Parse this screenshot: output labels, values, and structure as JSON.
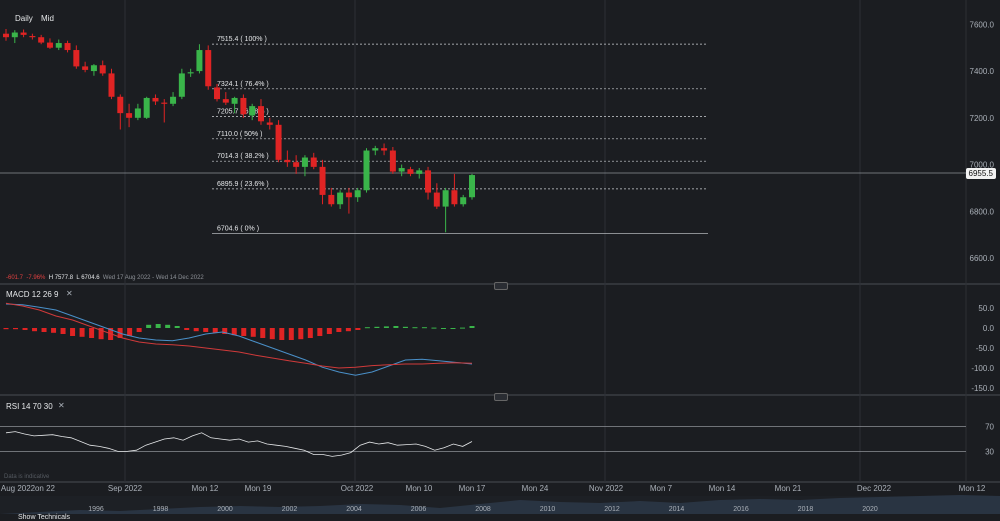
{
  "toolbar": {
    "daily_label": "Daily",
    "mid_label": "Mid"
  },
  "price_axis": {
    "ticks": [
      "7600.0",
      "7400.0",
      "7200.0",
      "7000.0",
      "6800.0",
      "6600.0"
    ],
    "last_price": "6955.5"
  },
  "fib_levels": [
    {
      "price": 7515.4,
      "label": "7515.4 ( 100% )"
    },
    {
      "price": 7324.1,
      "label": "7324.1 ( 76.4% )"
    },
    {
      "price": 7205.7,
      "label": "7205.7 ( 61.8% )"
    },
    {
      "price": 7110.0,
      "label": "7110.0 ( 50% )"
    },
    {
      "price": 7014.3,
      "label": "7014.3 ( 38.2% )"
    },
    {
      "price": 6895.9,
      "label": "6895.9 ( 23.6% )"
    },
    {
      "price": 6704.6,
      "label": "6704.6 ( 0% )"
    }
  ],
  "stats": {
    "change": "-601.7",
    "change_pct": "-7.96%",
    "high": "H 7577.8",
    "low": "L 6704.6",
    "range": "Wed 17 Aug 2022 - Wed 14 Dec 2022"
  },
  "macd": {
    "title": "MACD  12  26  9",
    "ticks": [
      "50.0",
      "0.0",
      "-50.0",
      "-100.0",
      "-150.0"
    ]
  },
  "rsi": {
    "title": "RSI  14  70  30",
    "ticks": [
      "70",
      "30"
    ]
  },
  "watermark": "Data is indicative",
  "date_axis": [
    "Aug 2022",
    "on 22",
    "Sep 2022",
    "Mon 12",
    "Mon 19",
    "Oct 2022",
    "Mon 10",
    "Mon 17",
    "Mon 24",
    "Nov 2022",
    "Mon 7",
    "Mon 14",
    "Mon 21",
    "Dec 2022",
    "Mon 12"
  ],
  "navigator_years": [
    "1996",
    "1998",
    "2000",
    "2002",
    "2004",
    "2006",
    "2008",
    "2010",
    "2012",
    "2014",
    "2016",
    "2018",
    "2020"
  ],
  "footer_label": "Show Technicals",
  "colors": {
    "up": "#3ab54a",
    "down": "#e02424",
    "background": "#1b1d21",
    "macd_line": "#4a90c9",
    "signal_line": "#d03a3a"
  },
  "chart_data": {
    "type": "candlestick",
    "y_range": [
      6540,
      7670
    ],
    "candles": [
      {
        "o": 7560,
        "h": 7580,
        "l": 7530,
        "c": 7545
      },
      {
        "o": 7545,
        "h": 7575,
        "l": 7520,
        "c": 7565
      },
      {
        "o": 7565,
        "h": 7578,
        "l": 7545,
        "c": 7555
      },
      {
        "o": 7550,
        "h": 7560,
        "l": 7535,
        "c": 7545
      },
      {
        "o": 7545,
        "h": 7555,
        "l": 7515,
        "c": 7522
      },
      {
        "o": 7522,
        "h": 7540,
        "l": 7495,
        "c": 7500
      },
      {
        "o": 7500,
        "h": 7535,
        "l": 7490,
        "c": 7520
      },
      {
        "o": 7520,
        "h": 7530,
        "l": 7480,
        "c": 7490
      },
      {
        "o": 7490,
        "h": 7510,
        "l": 7410,
        "c": 7420
      },
      {
        "o": 7420,
        "h": 7440,
        "l": 7395,
        "c": 7405
      },
      {
        "o": 7400,
        "h": 7430,
        "l": 7380,
        "c": 7425
      },
      {
        "o": 7425,
        "h": 7445,
        "l": 7380,
        "c": 7390
      },
      {
        "o": 7390,
        "h": 7410,
        "l": 7280,
        "c": 7290
      },
      {
        "o": 7290,
        "h": 7300,
        "l": 7150,
        "c": 7220
      },
      {
        "o": 7220,
        "h": 7260,
        "l": 7160,
        "c": 7200
      },
      {
        "o": 7200,
        "h": 7260,
        "l": 7190,
        "c": 7240
      },
      {
        "o": 7200,
        "h": 7290,
        "l": 7195,
        "c": 7285
      },
      {
        "o": 7285,
        "h": 7300,
        "l": 7255,
        "c": 7270
      },
      {
        "o": 7265,
        "h": 7280,
        "l": 7180,
        "c": 7260
      },
      {
        "o": 7260,
        "h": 7310,
        "l": 7250,
        "c": 7290
      },
      {
        "o": 7290,
        "h": 7410,
        "l": 7280,
        "c": 7390
      },
      {
        "o": 7390,
        "h": 7410,
        "l": 7375,
        "c": 7395
      },
      {
        "o": 7400,
        "h": 7515,
        "l": 7390,
        "c": 7490
      },
      {
        "o": 7490,
        "h": 7510,
        "l": 7320,
        "c": 7335
      },
      {
        "o": 7330,
        "h": 7345,
        "l": 7270,
        "c": 7280
      },
      {
        "o": 7280,
        "h": 7310,
        "l": 7255,
        "c": 7265
      },
      {
        "o": 7260,
        "h": 7290,
        "l": 7220,
        "c": 7285
      },
      {
        "o": 7285,
        "h": 7300,
        "l": 7200,
        "c": 7215
      },
      {
        "o": 7210,
        "h": 7260,
        "l": 7190,
        "c": 7250
      },
      {
        "o": 7250,
        "h": 7280,
        "l": 7170,
        "c": 7185
      },
      {
        "o": 7180,
        "h": 7200,
        "l": 7150,
        "c": 7170
      },
      {
        "o": 7170,
        "h": 7190,
        "l": 7010,
        "c": 7020
      },
      {
        "o": 7020,
        "h": 7060,
        "l": 6990,
        "c": 7010
      },
      {
        "o": 7010,
        "h": 7040,
        "l": 6960,
        "c": 6990
      },
      {
        "o": 6990,
        "h": 7040,
        "l": 6950,
        "c": 7030
      },
      {
        "o": 7030,
        "h": 7050,
        "l": 6980,
        "c": 6990
      },
      {
        "o": 6990,
        "h": 7020,
        "l": 6830,
        "c": 6870
      },
      {
        "o": 6870,
        "h": 6900,
        "l": 6820,
        "c": 6830
      },
      {
        "o": 6830,
        "h": 6890,
        "l": 6810,
        "c": 6880
      },
      {
        "o": 6880,
        "h": 6900,
        "l": 6790,
        "c": 6860
      },
      {
        "o": 6860,
        "h": 6900,
        "l": 6840,
        "c": 6890
      },
      {
        "o": 6890,
        "h": 7070,
        "l": 6880,
        "c": 7060
      },
      {
        "o": 7060,
        "h": 7080,
        "l": 7040,
        "c": 7070
      },
      {
        "o": 7070,
        "h": 7090,
        "l": 7040,
        "c": 7060
      },
      {
        "o": 7060,
        "h": 7075,
        "l": 6960,
        "c": 6970
      },
      {
        "o": 6970,
        "h": 7000,
        "l": 6950,
        "c": 6985
      },
      {
        "o": 6980,
        "h": 6990,
        "l": 6950,
        "c": 6960
      },
      {
        "o": 6960,
        "h": 6985,
        "l": 6940,
        "c": 6975
      },
      {
        "o": 6975,
        "h": 6990,
        "l": 6850,
        "c": 6880
      },
      {
        "o": 6880,
        "h": 6920,
        "l": 6810,
        "c": 6820
      },
      {
        "o": 6820,
        "h": 6900,
        "l": 6710,
        "c": 6890
      },
      {
        "o": 6890,
        "h": 6960,
        "l": 6820,
        "c": 6830
      },
      {
        "o": 6830,
        "h": 6870,
        "l": 6820,
        "c": 6860
      },
      {
        "o": 6860,
        "h": 6960,
        "l": 6850,
        "c": 6955
      }
    ],
    "macd_range": [
      -160,
      80
    ],
    "macd_line": [
      60,
      58,
      52,
      45,
      30,
      15,
      0,
      -15,
      -25,
      -30,
      -32,
      -25,
      -15,
      -10,
      -20,
      -35,
      -50,
      -65,
      -80,
      -98,
      -110,
      -118,
      -110,
      -95,
      -80,
      -78,
      -82,
      -86,
      -90
    ],
    "signal_line": [
      62,
      55,
      45,
      30,
      20,
      5,
      -10,
      -25,
      -35,
      -40,
      -42,
      -45,
      -50,
      -55,
      -60,
      -68,
      -75,
      -82,
      -88,
      -95,
      -100,
      -98,
      -94,
      -92,
      -90,
      -90,
      -88,
      -87,
      -88
    ],
    "histogram": [
      -3,
      -3,
      -5,
      -8,
      -10,
      -12,
      -15,
      -20,
      -22,
      -25,
      -28,
      -30,
      -25,
      -20,
      -10,
      8,
      10,
      8,
      5,
      -5,
      -8,
      -10,
      -12,
      -15,
      -18,
      -20,
      -22,
      -25,
      -28,
      -30,
      -30,
      -28,
      -25,
      -20,
      -15,
      -10,
      -8,
      -5,
      2,
      3,
      4,
      5,
      3,
      2,
      2,
      1,
      0,
      0,
      1,
      5
    ],
    "rsi_range": [
      0,
      100
    ],
    "rsi": [
      60,
      62,
      58,
      55,
      56,
      57,
      54,
      52,
      46,
      40,
      38,
      35,
      30,
      30,
      32,
      40,
      45,
      50,
      52,
      48,
      55,
      60,
      52,
      50,
      48,
      50,
      45,
      47,
      42,
      40,
      38,
      35,
      32,
      25,
      25,
      22,
      24,
      28,
      40,
      45,
      42,
      44,
      40,
      41,
      42,
      38,
      32,
      36,
      42,
      38,
      46
    ]
  }
}
